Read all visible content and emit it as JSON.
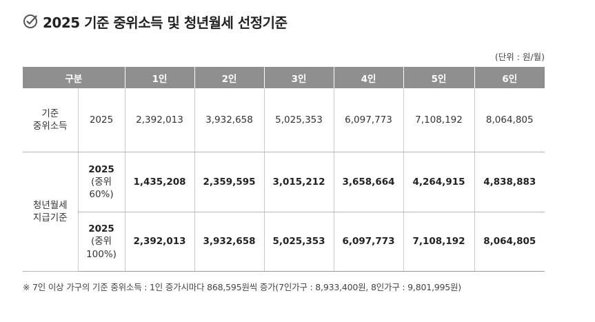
{
  "title": "2025 기준 중위소득 및 청년월세 선정기준",
  "unit_note": "(단위 : 원/월)",
  "table": {
    "header": {
      "category": "구분",
      "columns": [
        "1인",
        "2인",
        "3인",
        "4인",
        "5인",
        "6인"
      ]
    },
    "median_income": {
      "label_line1": "기준",
      "label_line2": "중위소득",
      "year": "2025",
      "values": [
        "2,392,013",
        "3,932,658",
        "5,025,353",
        "6,097,773",
        "7,108,192",
        "8,064,805"
      ]
    },
    "youth_rent": {
      "label_line1": "청년월세",
      "label_line2": "지급기준",
      "rows": [
        {
          "year": "2025",
          "pct_line1": "(중위",
          "pct_line2": "60%)",
          "values": [
            "1,435,208",
            "2,359,595",
            "3,015,212",
            "3,658,664",
            "4,264,915",
            "4,838,883"
          ]
        },
        {
          "year": "2025",
          "pct_line1": "(중위",
          "pct_line2": "100%)",
          "values": [
            "2,392,013",
            "3,932,658",
            "5,025,353",
            "6,097,773",
            "7,108,192",
            "8,064,805"
          ]
        }
      ]
    }
  },
  "footnote": "※ 7인 이상 가구의 기준 중위소득 : 1인 증가시마다 868,595원씩 증가(7인가구 : 8,933,400원, 8인가구 : 9,801,995원)",
  "icons": {
    "title_icon": "check-circle-icon"
  },
  "colors": {
    "header_bg": "#8f8f8f",
    "header_text": "#ffffff",
    "text": "#333333"
  }
}
